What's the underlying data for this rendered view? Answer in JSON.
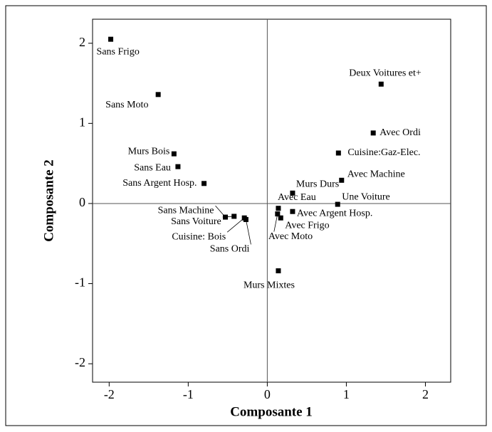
{
  "chart_data": {
    "type": "scatter",
    "xlabel": "Composante 1",
    "ylabel": "Composante 2",
    "labels": [
      "Sans Frigo",
      "Sans Moto",
      "Murs Bois",
      "Sans Eau",
      "Sans Argent Hosp.",
      "Sans Machine",
      "Sans Voiture",
      "Cuisine: Bois",
      "Sans Ordi",
      "Deux Voitures et+",
      "Avec Ordi",
      "Cuisine:Gaz-Elec.",
      "Avec Machine",
      "Murs Durs",
      "Avec Eau",
      "Une Voiture",
      "Avec Argent Hosp.",
      "Avec Frigo",
      "Avec Moto",
      "Murs Mixtes"
    ],
    "x": [
      -1.98,
      -1.38,
      -1.18,
      -1.13,
      -0.8,
      -0.53,
      -0.42,
      -0.29,
      -0.27,
      1.44,
      1.34,
      0.9,
      0.94,
      0.32,
      0.14,
      0.89,
      0.32,
      0.17,
      0.13,
      0.14
    ],
    "y": [
      2.05,
      1.36,
      0.62,
      0.46,
      0.25,
      -0.17,
      -0.16,
      -0.18,
      -0.2,
      1.49,
      0.88,
      0.63,
      0.29,
      0.13,
      -0.06,
      -0.01,
      -0.1,
      -0.18,
      -0.13,
      -0.84
    ],
    "color": "#000000",
    "xlim": [
      -2.21,
      2.32
    ],
    "ylim": [
      -2.23,
      2.3
    ],
    "xticks": [
      -2,
      -1,
      0,
      1,
      2
    ],
    "yticks": [
      -2,
      -1,
      0,
      1,
      2
    ]
  }
}
